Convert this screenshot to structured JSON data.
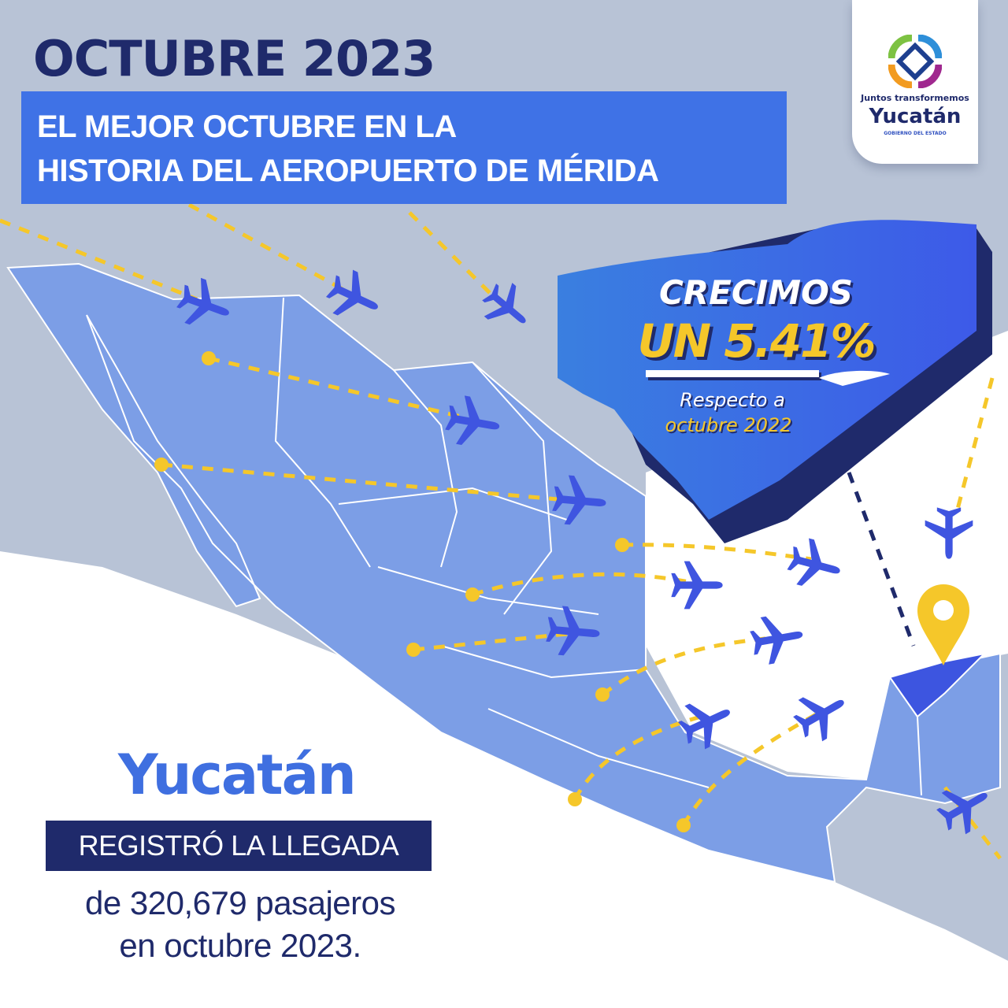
{
  "header": {
    "title": "OCTUBRE 2023",
    "subtitle_line1": "EL MEJOR OCTUBRE EN LA",
    "subtitle_line2": "HISTORIA DEL AEROPUERTO DE MÉRIDA"
  },
  "logo": {
    "tagline": "Juntos transformemos",
    "name": "Yucatán",
    "subtitle": "GOBIERNO DEL ESTADO"
  },
  "growth": {
    "line1": "CRECIMOS",
    "percent": "UN 5.41%",
    "compare_line1": "Respecto a",
    "compare_line2": "octubre 2022"
  },
  "summary": {
    "state": "Yucatán",
    "banner": "REGISTRÓ LA LLEGADA",
    "line1": "de 320,679 pasajeros",
    "line2": "en octubre 2023."
  },
  "colors": {
    "background": "#b8c3d6",
    "map": "#7c9ee6",
    "navy": "#1f2a6b",
    "accent_blue": "#3f72e6",
    "yellow": "#f5c72a",
    "plane": "#3f55e0"
  },
  "icons": [
    "airplane-icon",
    "location-pin-icon",
    "yucatan-government-logo"
  ]
}
